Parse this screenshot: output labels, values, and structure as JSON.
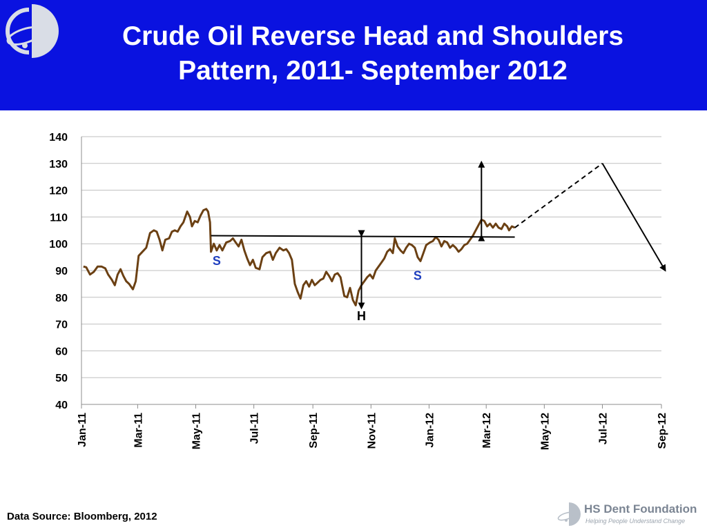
{
  "header": {
    "title_line1": "Crude Oil Reverse Head and Shoulders",
    "title_line2": "Pattern, 2011- September 2012"
  },
  "footer": {
    "source": "Data Source: Bloomberg, 2012",
    "brand_name": "HS Dent Foundation",
    "brand_tagline": "Helping People Understand Change"
  },
  "colors": {
    "header_bg": "#0a12e0",
    "price_line": "#6b4013",
    "pattern_label": "#1f3fbf",
    "annotation": "#000000",
    "grid": "#bfbfbf"
  },
  "chart_data": {
    "type": "line",
    "title": "",
    "xlabel": "",
    "ylabel": "",
    "ylim": [
      40,
      140
    ],
    "yticks": [
      40,
      50,
      60,
      70,
      80,
      90,
      100,
      110,
      120,
      130,
      140
    ],
    "xlim": [
      "2011-01-01",
      "2012-09-01"
    ],
    "xticks": [
      {
        "date": "2011-01-01",
        "label": "Jan-11"
      },
      {
        "date": "2011-03-01",
        "label": "Mar-11"
      },
      {
        "date": "2011-05-01",
        "label": "May-11"
      },
      {
        "date": "2011-07-01",
        "label": "Jul-11"
      },
      {
        "date": "2011-09-01",
        "label": "Sep-11"
      },
      {
        "date": "2011-11-01",
        "label": "Nov-11"
      },
      {
        "date": "2012-01-01",
        "label": "Jan-12"
      },
      {
        "date": "2012-03-01",
        "label": "Mar-12"
      },
      {
        "date": "2012-05-01",
        "label": "May-12"
      },
      {
        "date": "2012-07-01",
        "label": "Jul-12"
      },
      {
        "date": "2012-09-01",
        "label": "Sep-12"
      }
    ],
    "grid": true,
    "series": [
      {
        "points": [
          [
            "2011-01-03",
            91.5
          ],
          [
            "2011-01-06",
            91.2
          ],
          [
            "2011-01-10",
            88.5
          ],
          [
            "2011-01-14",
            89.5
          ],
          [
            "2011-01-18",
            91.5
          ],
          [
            "2011-01-22",
            91.5
          ],
          [
            "2011-01-26",
            90.8
          ],
          [
            "2011-01-29",
            88.5
          ],
          [
            "2011-02-02",
            86.5
          ],
          [
            "2011-02-05",
            84.5
          ],
          [
            "2011-02-08",
            88.5
          ],
          [
            "2011-02-11",
            90.5
          ],
          [
            "2011-02-14",
            88.0
          ],
          [
            "2011-02-17",
            86.0
          ],
          [
            "2011-02-20",
            85.0
          ],
          [
            "2011-02-24",
            83.0
          ],
          [
            "2011-02-27",
            86.0
          ],
          [
            "2011-03-02",
            95.5
          ],
          [
            "2011-03-06",
            97.0
          ],
          [
            "2011-03-10",
            98.5
          ],
          [
            "2011-03-14",
            104.0
          ],
          [
            "2011-03-18",
            105.0
          ],
          [
            "2011-03-21",
            104.5
          ],
          [
            "2011-03-24",
            101.5
          ],
          [
            "2011-03-27",
            97.5
          ],
          [
            "2011-03-30",
            101.5
          ],
          [
            "2011-04-03",
            102.0
          ],
          [
            "2011-04-06",
            104.5
          ],
          [
            "2011-04-09",
            105.0
          ],
          [
            "2011-04-12",
            104.5
          ],
          [
            "2011-04-15",
            106.5
          ],
          [
            "2011-04-18",
            108.0
          ],
          [
            "2011-04-22",
            112.0
          ],
          [
            "2011-04-25",
            110.0
          ],
          [
            "2011-04-27",
            106.5
          ],
          [
            "2011-04-30",
            108.5
          ],
          [
            "2011-05-03",
            108.0
          ],
          [
            "2011-05-06",
            110.5
          ],
          [
            "2011-05-09",
            112.5
          ],
          [
            "2011-05-12",
            113.0
          ],
          [
            "2011-05-14",
            112.0
          ],
          [
            "2011-05-16",
            108.0
          ],
          [
            "2011-05-17",
            97.0
          ],
          [
            "2011-05-20",
            100.0
          ],
          [
            "2011-05-23",
            97.5
          ],
          [
            "2011-05-26",
            99.5
          ],
          [
            "2011-05-29",
            97.5
          ],
          [
            "2011-06-02",
            100.5
          ],
          [
            "2011-06-06",
            101.0
          ],
          [
            "2011-06-09",
            102.0
          ],
          [
            "2011-06-12",
            100.5
          ],
          [
            "2011-06-15",
            99.0
          ],
          [
            "2011-06-18",
            101.5
          ],
          [
            "2011-06-21",
            97.5
          ],
          [
            "2011-06-24",
            94.5
          ],
          [
            "2011-06-27",
            92.0
          ],
          [
            "2011-06-30",
            94.0
          ],
          [
            "2011-07-03",
            91.0
          ],
          [
            "2011-07-07",
            90.5
          ],
          [
            "2011-07-10",
            95.0
          ],
          [
            "2011-07-14",
            96.5
          ],
          [
            "2011-07-18",
            97.0
          ],
          [
            "2011-07-21",
            94.0
          ],
          [
            "2011-07-24",
            96.5
          ],
          [
            "2011-07-28",
            98.5
          ],
          [
            "2011-08-01",
            97.5
          ],
          [
            "2011-08-04",
            98.0
          ],
          [
            "2011-08-07",
            96.5
          ],
          [
            "2011-08-10",
            94.0
          ],
          [
            "2011-08-13",
            85.0
          ],
          [
            "2011-08-16",
            82.0
          ],
          [
            "2011-08-19",
            79.5
          ],
          [
            "2011-08-22",
            84.5
          ],
          [
            "2011-08-25",
            86.0
          ],
          [
            "2011-08-28",
            84.0
          ],
          [
            "2011-08-31",
            86.5
          ],
          [
            "2011-09-03",
            84.5
          ],
          [
            "2011-09-06",
            85.5
          ],
          [
            "2011-09-09",
            86.5
          ],
          [
            "2011-09-12",
            87.0
          ],
          [
            "2011-09-15",
            89.5
          ],
          [
            "2011-09-18",
            88.0
          ],
          [
            "2011-09-21",
            86.0
          ],
          [
            "2011-09-24",
            88.5
          ],
          [
            "2011-09-27",
            89.0
          ],
          [
            "2011-09-30",
            87.5
          ],
          [
            "2011-10-02",
            84.0
          ],
          [
            "2011-10-04",
            80.5
          ],
          [
            "2011-10-07",
            80.0
          ],
          [
            "2011-10-10",
            83.5
          ],
          [
            "2011-10-13",
            79.0
          ],
          [
            "2011-10-16",
            77.0
          ],
          [
            "2011-10-19",
            82.5
          ],
          [
            "2011-10-22",
            84.5
          ],
          [
            "2011-10-25",
            86.0
          ],
          [
            "2011-10-28",
            87.5
          ],
          [
            "2011-10-31",
            88.5
          ],
          [
            "2011-11-03",
            87.0
          ],
          [
            "2011-11-06",
            90.0
          ],
          [
            "2011-11-09",
            91.5
          ],
          [
            "2011-11-12",
            93.0
          ],
          [
            "2011-11-15",
            94.5
          ],
          [
            "2011-11-18",
            97.0
          ],
          [
            "2011-11-21",
            98.0
          ],
          [
            "2011-11-24",
            96.5
          ],
          [
            "2011-11-26",
            102.0
          ],
          [
            "2011-11-29",
            99.0
          ],
          [
            "2011-12-02",
            97.5
          ],
          [
            "2011-12-05",
            96.5
          ],
          [
            "2011-12-08",
            98.5
          ],
          [
            "2011-12-11",
            100.0
          ],
          [
            "2011-12-14",
            99.5
          ],
          [
            "2011-12-17",
            98.5
          ],
          [
            "2011-12-20",
            95.0
          ],
          [
            "2011-12-23",
            93.5
          ],
          [
            "2011-12-26",
            96.5
          ],
          [
            "2011-12-29",
            99.5
          ],
          [
            "2012-01-02",
            100.5
          ],
          [
            "2012-01-05",
            101.0
          ],
          [
            "2012-01-08",
            102.5
          ],
          [
            "2012-01-11",
            101.5
          ],
          [
            "2012-01-14",
            99.0
          ],
          [
            "2012-01-17",
            101.0
          ],
          [
            "2012-01-20",
            100.5
          ],
          [
            "2012-01-23",
            98.5
          ],
          [
            "2012-01-26",
            99.5
          ],
          [
            "2012-01-29",
            98.5
          ],
          [
            "2012-02-01",
            97.0
          ],
          [
            "2012-02-04",
            98.0
          ],
          [
            "2012-02-07",
            99.5
          ],
          [
            "2012-02-10",
            100.0
          ],
          [
            "2012-02-13",
            101.5
          ],
          [
            "2012-02-16",
            103.0
          ],
          [
            "2012-02-19",
            105.0
          ],
          [
            "2012-02-22",
            107.0
          ],
          [
            "2012-02-25",
            109.0
          ],
          [
            "2012-02-28",
            108.5
          ],
          [
            "2012-03-02",
            106.5
          ],
          [
            "2012-03-05",
            107.5
          ],
          [
            "2012-03-08",
            106.0
          ],
          [
            "2012-03-11",
            107.5
          ],
          [
            "2012-03-14",
            106.0
          ],
          [
            "2012-03-17",
            105.5
          ],
          [
            "2012-03-20",
            107.5
          ],
          [
            "2012-03-23",
            106.5
          ],
          [
            "2012-03-25",
            105.0
          ],
          [
            "2012-03-28",
            106.5
          ],
          [
            "2012-03-31",
            106.0
          ]
        ]
      }
    ],
    "annotations": {
      "neckline": {
        "start": [
          "2011-05-17",
          103.0
        ],
        "end": [
          "2012-03-31",
          102.5
        ]
      },
      "head_arrow": {
        "date": "2011-10-22",
        "from": 103.0,
        "to": 76.0
      },
      "target_arrow": {
        "date": "2012-02-25",
        "from": 103.0,
        "to": 130.5
      },
      "projection_up": {
        "start": [
          "2012-03-31",
          106.0
        ],
        "end": [
          "2012-07-01",
          130.0
        ]
      },
      "projection_down": {
        "start": [
          "2012-07-01",
          130.0
        ],
        "end": [
          "2012-09-05",
          90.0
        ]
      },
      "labels": [
        {
          "text": "S",
          "date": "2011-05-23",
          "value": 92.0,
          "role": "left-shoulder"
        },
        {
          "text": "H",
          "date": "2011-10-22",
          "value": 71.5,
          "role": "head"
        },
        {
          "text": "S",
          "date": "2011-12-20",
          "value": 86.5,
          "role": "right-shoulder"
        }
      ]
    }
  }
}
